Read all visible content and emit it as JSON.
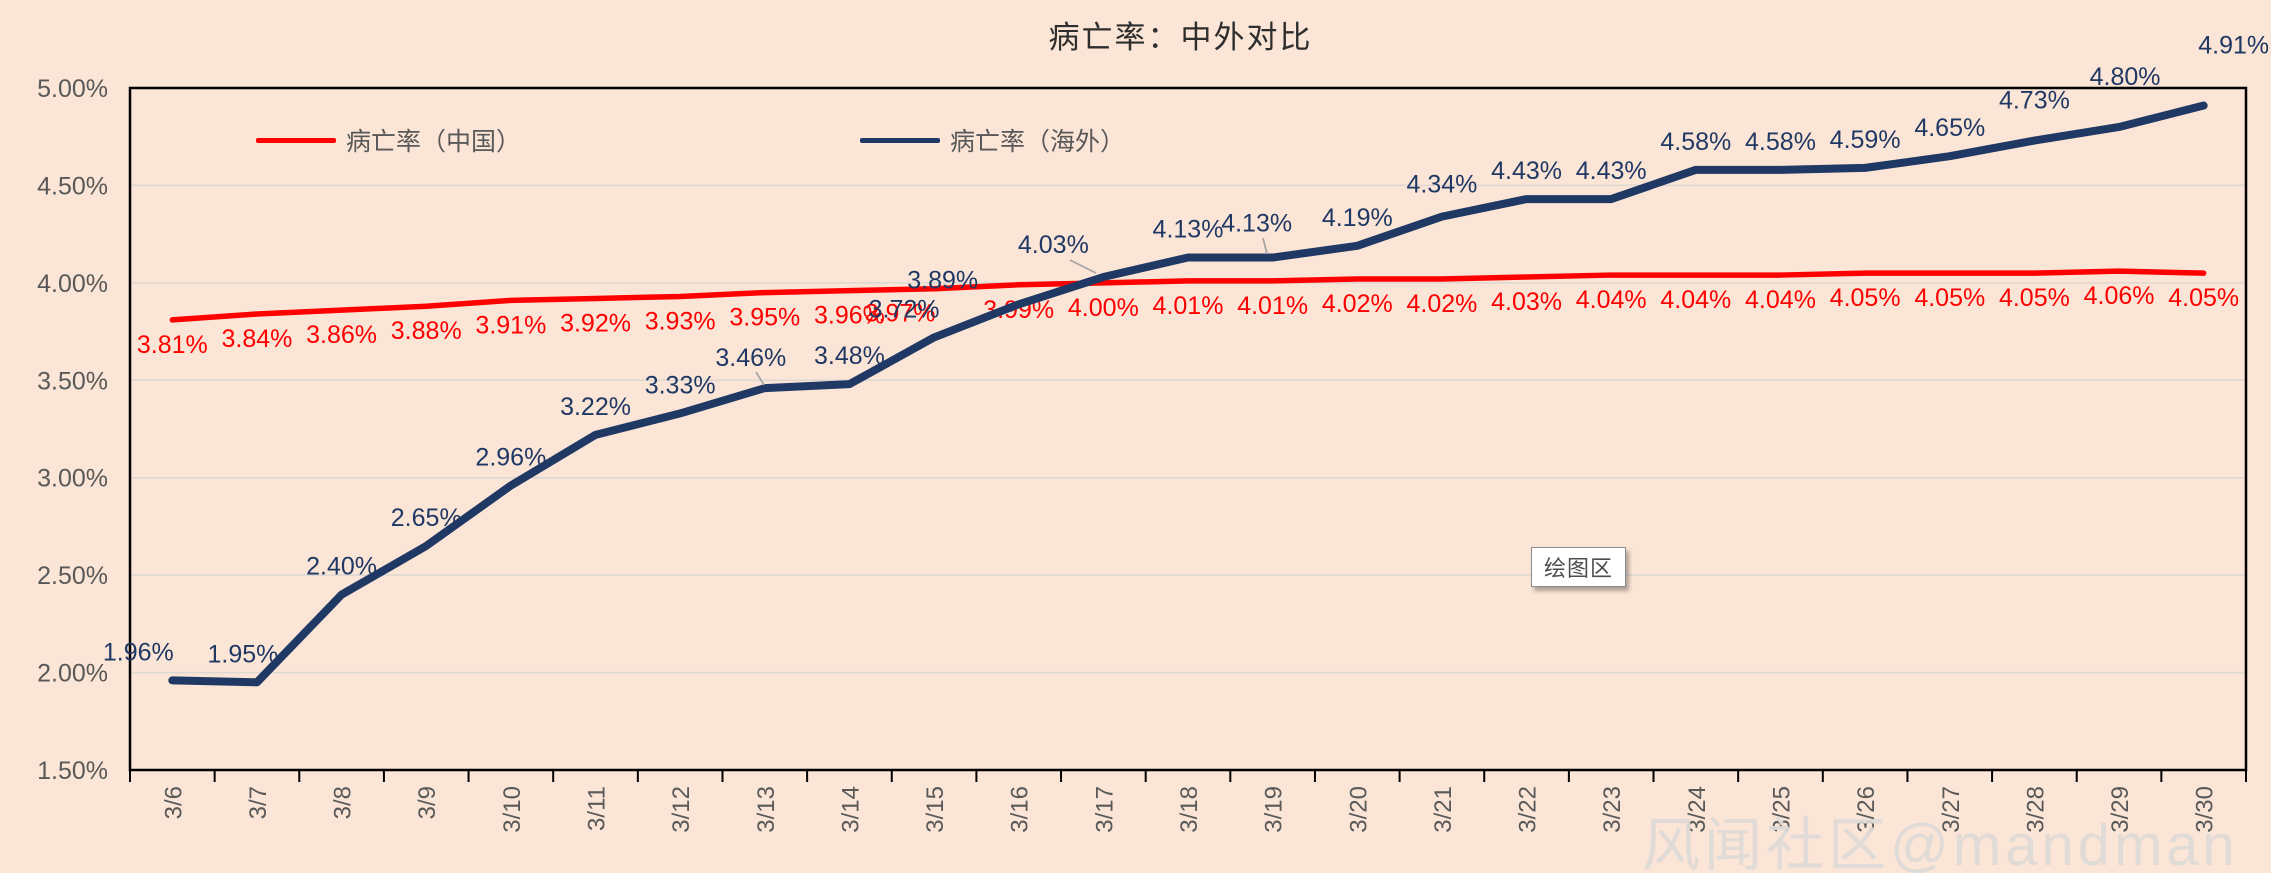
{
  "title": "病亡率：中外对比",
  "legend": [
    {
      "label": "病亡率（中国）",
      "color": "#fe0000"
    },
    {
      "label": "病亡率（海外）",
      "color": "#1f3864"
    }
  ],
  "tooltip": {
    "label": "绘图区"
  },
  "watermark": {
    "text": "风闻社区@mandman"
  },
  "chart_data": {
    "type": "line",
    "title": "病亡率：中外对比",
    "categories": [
      "3/6",
      "3/7",
      "3/8",
      "3/9",
      "3/10",
      "3/11",
      "3/12",
      "3/13",
      "3/14",
      "3/15",
      "3/16",
      "3/17",
      "3/18",
      "3/19",
      "3/20",
      "3/21",
      "3/22",
      "3/23",
      "3/24",
      "3/25",
      "3/26",
      "3/27",
      "3/28",
      "3/29",
      "3/30"
    ],
    "series": [
      {
        "name": "病亡率（中国）",
        "color": "#fe0000",
        "values": [
          3.81,
          3.84,
          3.86,
          3.88,
          3.91,
          3.92,
          3.93,
          3.95,
          3.96,
          3.97,
          3.99,
          4.0,
          4.01,
          4.01,
          4.02,
          4.02,
          4.03,
          4.04,
          4.04,
          4.04,
          4.05,
          4.05,
          4.05,
          4.06,
          4.05
        ]
      },
      {
        "name": "病亡率（海外）",
        "color": "#1f3864",
        "values": [
          1.96,
          1.95,
          2.4,
          2.65,
          2.96,
          3.22,
          3.33,
          3.46,
          3.48,
          3.72,
          3.89,
          4.03,
          4.13,
          4.13,
          4.19,
          4.34,
          4.43,
          4.43,
          4.58,
          4.58,
          4.59,
          4.65,
          4.73,
          4.8,
          4.91
        ]
      }
    ],
    "xlabel": "",
    "ylabel": "",
    "ylim": [
      1.5,
      5.0
    ],
    "y_ticks": [
      "5.00%",
      "4.50%",
      "4.00%",
      "3.50%",
      "3.00%",
      "2.50%",
      "2.00%",
      "1.50%"
    ],
    "grid": true,
    "legend_position": "top-inside",
    "data_labels": "all-points, percent 2dp; red series below line, navy series above line",
    "background": "#fbe5d6",
    "gridline_color": "#ddd8d2",
    "axis_text_color": "#595959"
  }
}
